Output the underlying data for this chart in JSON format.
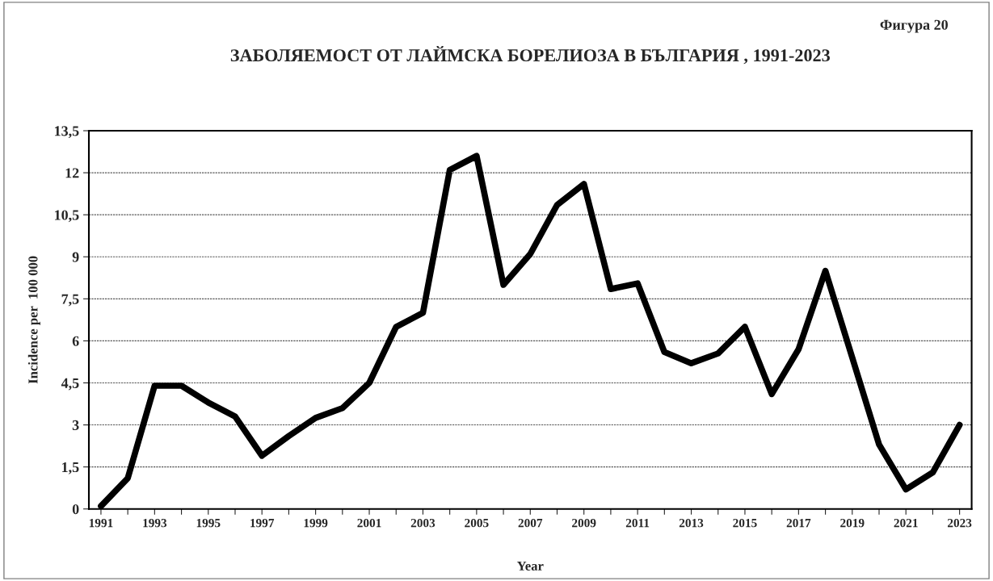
{
  "chart_data": {
    "type": "line",
    "title": "ЗАБОЛЯЕМОСТ ОТ ЛАЙМСКА БОРЕЛИОЗА В БЪЛГАРИЯ , 1991-2023",
    "xlabel": "Year",
    "ylabel": "Incidence per  100 000",
    "annotations": [
      "Фигура 20"
    ],
    "categories": [
      "1991",
      null,
      "1993",
      null,
      "1995",
      null,
      "1997",
      null,
      "1999",
      null,
      "2001",
      null,
      "2003",
      null,
      "2005",
      null,
      "2007",
      null,
      "2009",
      null,
      "2011",
      null,
      "2013",
      null,
      "2015",
      null,
      "2017",
      null,
      "2019",
      null,
      "2021",
      null,
      "2023"
    ],
    "series": [
      {
        "color": "#000000",
        "values": [
          0.1,
          1.1,
          4.4,
          4.4,
          3.8,
          3.3,
          1.9,
          2.6,
          3.25,
          3.6,
          4.5,
          6.5,
          7.0,
          12.1,
          12.6,
          8.0,
          9.1,
          10.85,
          11.6,
          7.85,
          8.05,
          5.6,
          5.2,
          5.55,
          6.5,
          4.1,
          5.7,
          8.5,
          5.4,
          2.3,
          0.7,
          1.3,
          3.0
        ]
      }
    ],
    "ylim": [
      0,
      13.5
    ],
    "yticks": [
      {
        "value": 0,
        "label": "0"
      },
      {
        "value": 1.5,
        "label": "1,5"
      },
      {
        "value": 3,
        "label": "3"
      },
      {
        "value": 4.5,
        "label": "4,5"
      },
      {
        "value": 6,
        "label": "6"
      },
      {
        "value": 7.5,
        "label": "7,5"
      },
      {
        "value": 9,
        "label": "9"
      },
      {
        "value": 10.5,
        "label": "10,5"
      },
      {
        "value": 12,
        "label": "12"
      },
      {
        "value": 13.5,
        "label": "13,5"
      }
    ],
    "grid": "y",
    "line_style": "solid",
    "legend": false
  }
}
